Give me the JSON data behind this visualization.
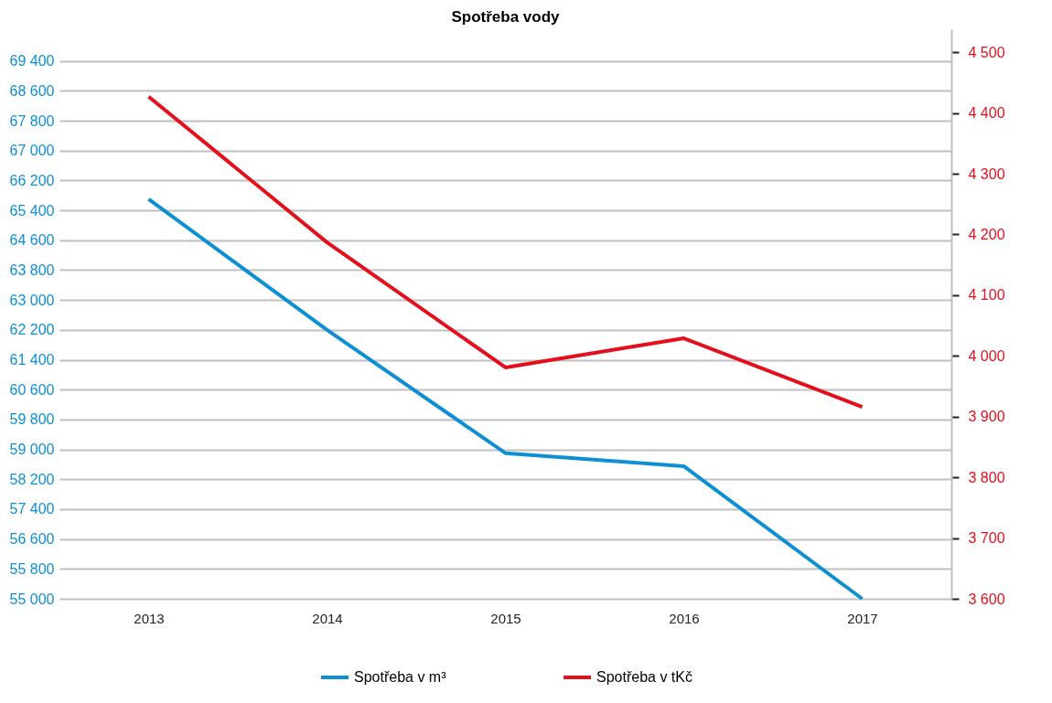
{
  "chart_data": {
    "type": "line",
    "title": "Spotřeba vody",
    "categories": [
      "2013",
      "2014",
      "2015",
      "2016",
      "2017"
    ],
    "series": [
      {
        "name": "Spotřeba v m³",
        "color": "#0e8fd4",
        "values": [
          65700,
          62200,
          58900,
          58550,
          55000
        ]
      },
      {
        "name": "Spotřeba v tKč",
        "color": "#e3101c",
        "axis": "y2",
        "values": [
          4427,
          4187,
          3981,
          4029,
          3916
        ]
      }
    ],
    "ylim": [
      55000,
      70250
    ],
    "yticks": [
      {
        "value": 55000,
        "label": "55 000"
      },
      {
        "value": 55800,
        "label": "55 800"
      },
      {
        "value": 56600,
        "label": "56 600"
      },
      {
        "value": 57400,
        "label": "57 400"
      },
      {
        "value": 58200,
        "label": "58 200"
      },
      {
        "value": 59000,
        "label": "59 000"
      },
      {
        "value": 59800,
        "label": "59 800"
      },
      {
        "value": 60600,
        "label": "60 600"
      },
      {
        "value": 61400,
        "label": "61 400"
      },
      {
        "value": 62200,
        "label": "62 200"
      },
      {
        "value": 63000,
        "label": "63 000"
      },
      {
        "value": 63800,
        "label": "63 800"
      },
      {
        "value": 64600,
        "label": "64 600"
      },
      {
        "value": 65400,
        "label": "65 400"
      },
      {
        "value": 66200,
        "label": "66 200"
      },
      {
        "value": 67000,
        "label": "67 000"
      },
      {
        "value": 67800,
        "label": "67 800"
      },
      {
        "value": 68600,
        "label": "68 600"
      },
      {
        "value": 69400,
        "label": "69 400"
      }
    ],
    "y2lim": [
      3600,
      4538
    ],
    "y2ticks": [
      {
        "value": 3600,
        "label": "3 600"
      },
      {
        "value": 3700,
        "label": "3 700"
      },
      {
        "value": 3800,
        "label": "3 800"
      },
      {
        "value": 3900,
        "label": "3 900"
      },
      {
        "value": 4000,
        "label": "4 000"
      },
      {
        "value": 4100,
        "label": "4 100"
      },
      {
        "value": 4200,
        "label": "4 200"
      },
      {
        "value": 4300,
        "label": "4 300"
      },
      {
        "value": 4400,
        "label": "4 400"
      },
      {
        "value": 4500,
        "label": "4 500"
      }
    ],
    "grid": "y",
    "legend": "bottom",
    "marker": "none",
    "line_style": "solid"
  }
}
